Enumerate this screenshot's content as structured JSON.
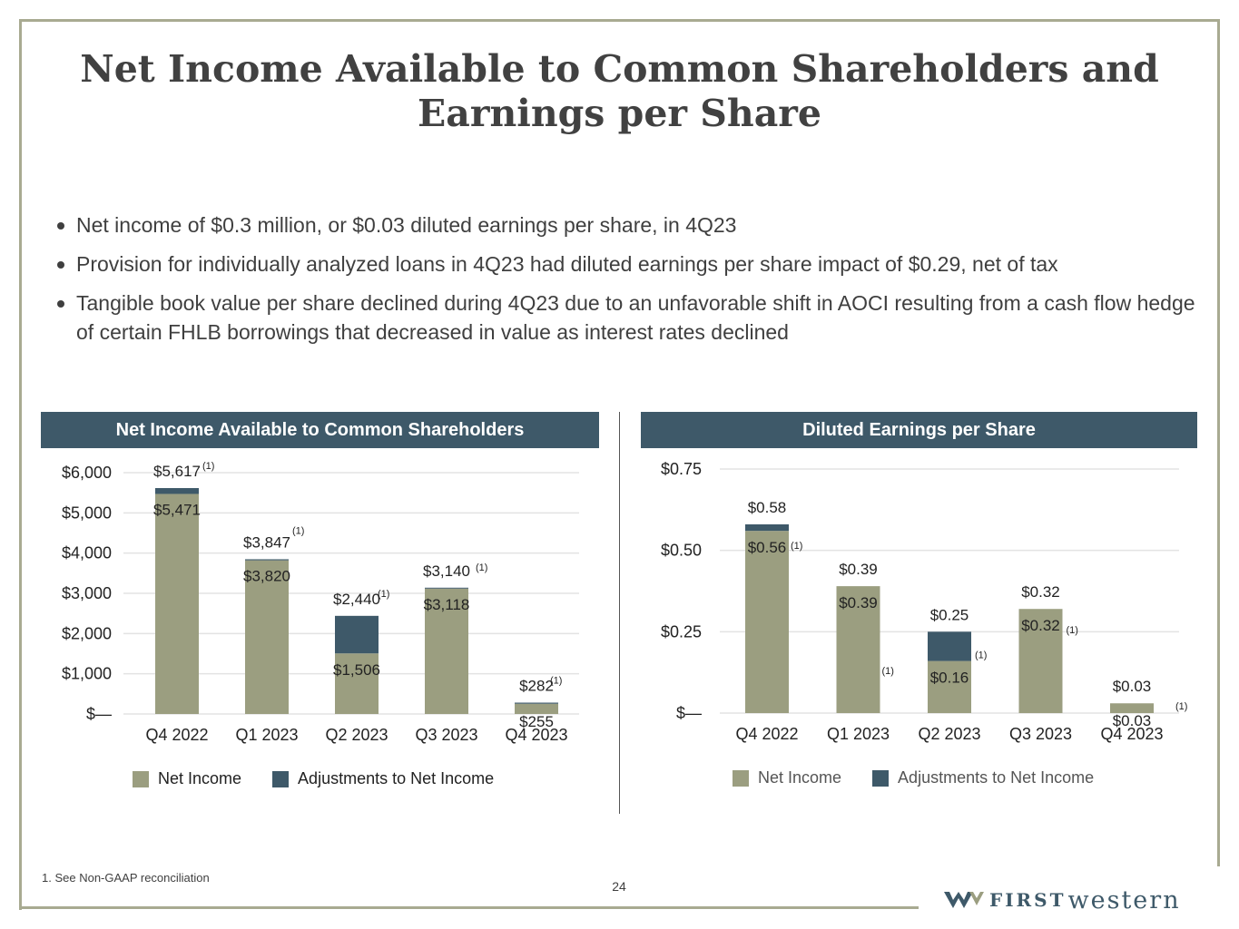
{
  "title": "Net Income Available to Common Shareholders and Earnings per Share",
  "bullets": [
    "Net income of $0.3 million, or $0.03 diluted earnings per share, in 4Q23",
    "Provision for individually analyzed loans in 4Q23 had diluted earnings per share impact of $0.29, net of tax",
    "Tangible book value per share declined during 4Q23 due to an unfavorable shift in AOCI resulting from a cash flow hedge of certain FHLB borrowings that decreased in value as interest rates declined"
  ],
  "colors": {
    "net_income": "#9b9e80",
    "adjustments": "#3e5969",
    "banner": "#3e5969",
    "frame": "#a8aa91"
  },
  "chart_data": [
    {
      "type": "bar",
      "stacked": true,
      "title": "Net Income Available to Common Shareholders",
      "categories": [
        "Q4 2022",
        "Q1 2023",
        "Q2 2023",
        "Q3 2023",
        "Q4 2023"
      ],
      "series": [
        {
          "name": "Net Income",
          "values": [
            5471,
            3820,
            1506,
            3118,
            255
          ]
        },
        {
          "name": "Adjustments to Net Income",
          "values": [
            146,
            27,
            934,
            22,
            27
          ]
        }
      ],
      "inner_labels": [
        "$5,471",
        "$3,820",
        "$1,506",
        "$3,118",
        "$255"
      ],
      "total_labels": [
        "$5,617",
        "$3,847",
        "$2,440",
        "$3,140",
        "$282"
      ],
      "footnote_marker": "(1)",
      "ytick_values": [
        0,
        1000,
        2000,
        3000,
        4000,
        5000,
        6000
      ],
      "ytick_labels": [
        "$—",
        "$1,000",
        "$2,000",
        "$3,000",
        "$4,000",
        "$5,000",
        "$6,000"
      ],
      "ylim": [
        0,
        6000
      ],
      "legend": [
        "Net Income",
        "Adjustments to Net Income"
      ]
    },
    {
      "type": "bar",
      "stacked": true,
      "title": "Diluted Earnings per Share",
      "categories": [
        "Q4 2022",
        "Q1 2023",
        "Q2 2023",
        "Q3 2023",
        "Q4 2023"
      ],
      "series": [
        {
          "name": "Net Income",
          "values": [
            0.56,
            0.39,
            0.16,
            0.32,
            0.03
          ]
        },
        {
          "name": "Adjustments to Net Income",
          "values": [
            0.02,
            0.0,
            0.09,
            0.0,
            0.0
          ]
        }
      ],
      "inner_labels": [
        "$0.56",
        "$0.39",
        "$0.16",
        "$0.32",
        "$0.03"
      ],
      "total_labels": [
        "$0.58",
        "$0.39",
        "$0.25",
        "$0.32",
        "$0.03"
      ],
      "footnote_marker": "(1)",
      "ytick_values": [
        0,
        0.25,
        0.5,
        0.75
      ],
      "ytick_labels": [
        "$—",
        "$0.25",
        "$0.50",
        "$0.75"
      ],
      "ylim": [
        0,
        0.75
      ],
      "legend": [
        "Net Income",
        "Adjustments to Net Income"
      ]
    }
  ],
  "footnote": "1.   See Non-GAAP reconciliation",
  "page_number": "24",
  "logo": {
    "first": "FIRST",
    "western": "western"
  }
}
